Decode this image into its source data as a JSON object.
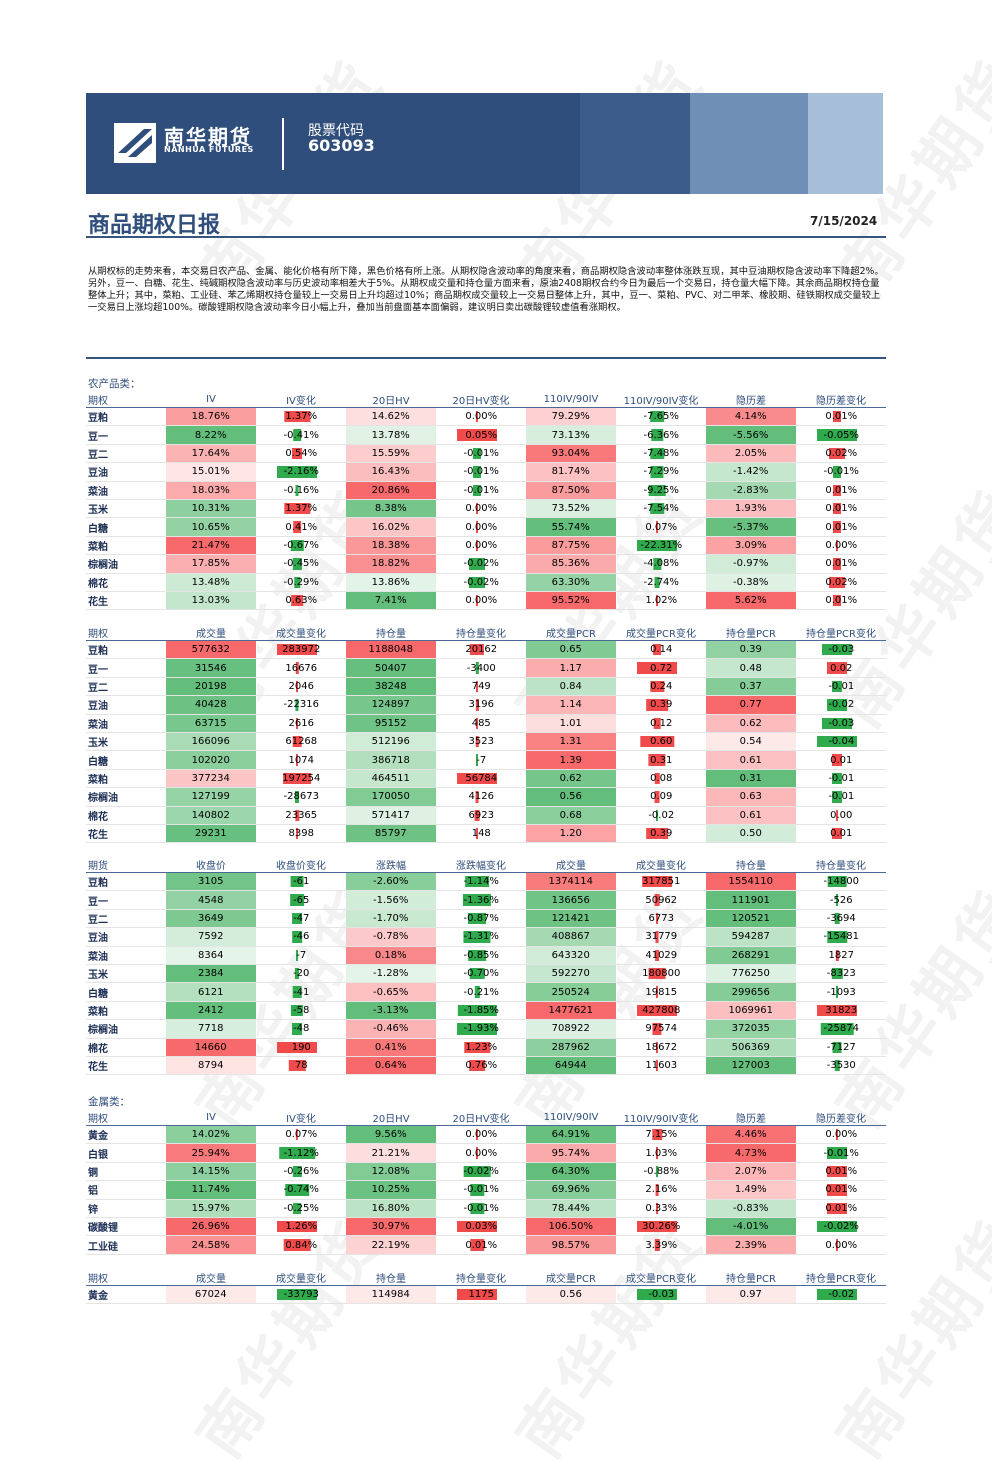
{
  "header": {
    "logo_cn": "南华期货",
    "logo_en": "NANHUA FUTURES",
    "stock_label": "股票代码",
    "stock_code": "603093",
    "title": "商品期权日报",
    "date": "7/15/2024",
    "watermark": "南华期货"
  },
  "summary": "从期权标的走势来看，本交易日农产品、金属、能化价格有所下降，黑色价格有所上涨。从期权隐含波动率的角度来看，商品期权隐含波动率整体涨跌互现，其中豆油期权隐含波动率下降超2%。另外，豆一、白糖、花生、纯碱期权隐含波动率与历史波动率相差大于5%。从期权成交量和持仓量方面来看，原油2408期权合约今日为最后一个交易日，持仓量大幅下降。其余商品期权持仓量整体上升；其中，菜粕、工业硅、苯乙烯期权持仓量较上一交易日上升均超过10%；商品期权成交量较上一交易日整体上升，其中，豆一、菜粕、PVC、对二甲苯、橡胶期、硅铁期权成交量较上一交易日上涨均超100%。碳酸锂期权隐含波动率今日小幅上升，叠加当前盘面基本面偏弱，建议明日卖出碳酸锂较虚值看涨期权。",
  "sections": [
    {
      "id": "agri-vol",
      "label": "农产品类：",
      "headers": [
        "期权",
        "IV",
        "IV变化",
        "20日HV",
        "20日HV变化",
        "110IV/90IV",
        "110IV/90IV变化",
        "隐历差",
        "隐历差变化"
      ],
      "rows": [
        [
          "豆粕",
          "18.76%",
          "1.37%",
          "14.62%",
          "0.00%",
          "79.29%",
          "-7.65%",
          "4.14%",
          "0.01%"
        ],
        [
          "豆一",
          "8.22%",
          "-0.41%",
          "13.78%",
          "0.05%",
          "73.13%",
          "-6.36%",
          "-5.56%",
          "-0.05%"
        ],
        [
          "豆二",
          "17.64%",
          "0.54%",
          "15.59%",
          "-0.01%",
          "93.04%",
          "-7.48%",
          "2.05%",
          "0.02%"
        ],
        [
          "豆油",
          "15.01%",
          "-2.16%",
          "16.43%",
          "-0.01%",
          "81.74%",
          "-7.29%",
          "-1.42%",
          "-0.01%"
        ],
        [
          "菜油",
          "18.03%",
          "-0.16%",
          "20.86%",
          "-0.01%",
          "87.50%",
          "-9.25%",
          "-2.83%",
          "0.01%"
        ],
        [
          "玉米",
          "10.31%",
          "1.37%",
          "8.38%",
          "0.00%",
          "73.52%",
          "-7.54%",
          "1.93%",
          "0.01%"
        ],
        [
          "白糖",
          "10.65%",
          "0.41%",
          "16.02%",
          "0.00%",
          "55.74%",
          "0.07%",
          "-5.37%",
          "0.01%"
        ],
        [
          "菜粕",
          "21.47%",
          "-0.67%",
          "18.38%",
          "0.00%",
          "87.75%",
          "-22.31%",
          "3.09%",
          "0.00%"
        ],
        [
          "棕榈油",
          "17.85%",
          "-0.45%",
          "18.82%",
          "-0.02%",
          "85.36%",
          "-4.08%",
          "-0.97%",
          "0.01%"
        ],
        [
          "棉花",
          "13.48%",
          "-0.29%",
          "13.86%",
          "-0.02%",
          "63.30%",
          "-2.74%",
          "-0.38%",
          "0.02%"
        ],
        [
          "花生",
          "13.03%",
          "0.63%",
          "7.41%",
          "0.00%",
          "95.52%",
          "1.02%",
          "5.62%",
          "0.01%"
        ]
      ]
    },
    {
      "id": "agri-volume",
      "label": "",
      "headers": [
        "期权",
        "成交量",
        "成交量变化",
        "持仓量",
        "持仓量变化",
        "成交量PCR",
        "成交量PCR变化",
        "持仓量PCR",
        "持仓量PCR变化"
      ],
      "rows": [
        [
          "豆粕",
          "577632",
          "283972",
          "1188048",
          "20162",
          "0.65",
          "0.14",
          "0.39",
          "-0.03"
        ],
        [
          "豆一",
          "31546",
          "16676",
          "50407",
          "-3400",
          "1.17",
          "0.72",
          "0.48",
          "0.02"
        ],
        [
          "豆二",
          "20198",
          "2046",
          "38248",
          "749",
          "0.84",
          "0.24",
          "0.37",
          "-0.01"
        ],
        [
          "豆油",
          "40428",
          "-22316",
          "124897",
          "3196",
          "1.14",
          "0.39",
          "0.77",
          "-0.02"
        ],
        [
          "菜油",
          "63715",
          "2616",
          "95152",
          "485",
          "1.01",
          "0.12",
          "0.62",
          "-0.03"
        ],
        [
          "玉米",
          "166096",
          "61268",
          "512196",
          "3523",
          "1.31",
          "0.60",
          "0.54",
          "-0.04"
        ],
        [
          "白糖",
          "102020",
          "1074",
          "386718",
          "-7",
          "1.39",
          "0.31",
          "0.61",
          "0.01"
        ],
        [
          "菜粕",
          "377234",
          "197254",
          "464511",
          "56784",
          "0.62",
          "0.08",
          "0.31",
          "-0.01"
        ],
        [
          "棕榈油",
          "127199",
          "-28673",
          "170050",
          "4126",
          "0.56",
          "0.09",
          "0.63",
          "-0.01"
        ],
        [
          "棉花",
          "140802",
          "23365",
          "571417",
          "6923",
          "0.68",
          "-0.02",
          "0.61",
          "0.00"
        ],
        [
          "花生",
          "29231",
          "8398",
          "85797",
          "148",
          "1.20",
          "0.39",
          "0.50",
          "0.01"
        ]
      ]
    },
    {
      "id": "agri-futures",
      "label": "",
      "headers": [
        "期货",
        "收盘价",
        "收盘价变化",
        "涨跌幅",
        "涨跌幅变化",
        "成交量",
        "成交量变化",
        "持仓量",
        "持仓量变化"
      ],
      "rows": [
        [
          "豆粕",
          "3105",
          "-61",
          "-2.60%",
          "-1.14%",
          "1374114",
          "317851",
          "1554110",
          "-14800"
        ],
        [
          "豆一",
          "4548",
          "-65",
          "-1.56%",
          "-1.36%",
          "136656",
          "50962",
          "111901",
          "-526"
        ],
        [
          "豆二",
          "3649",
          "-47",
          "-1.70%",
          "-0.87%",
          "121421",
          "6773",
          "120521",
          "-3694"
        ],
        [
          "豆油",
          "7592",
          "-46",
          "-0.78%",
          "-1.31%",
          "408867",
          "31779",
          "594287",
          "-15481"
        ],
        [
          "菜油",
          "8364",
          "-7",
          "0.18%",
          "-0.85%",
          "643320",
          "41029",
          "268291",
          "1827"
        ],
        [
          "玉米",
          "2384",
          "-20",
          "-1.28%",
          "-0.70%",
          "592270",
          "180800",
          "776250",
          "-8323"
        ],
        [
          "白糖",
          "6121",
          "-41",
          "-0.65%",
          "-0.21%",
          "250524",
          "19815",
          "299656",
          "-1093"
        ],
        [
          "菜粕",
          "2412",
          "-58",
          "-3.13%",
          "-1.85%",
          "1477621",
          "427808",
          "1069961",
          "31823"
        ],
        [
          "棕榈油",
          "7718",
          "-48",
          "-0.46%",
          "-1.93%",
          "708922",
          "97574",
          "372035",
          "-25874"
        ],
        [
          "棉花",
          "14660",
          "190",
          "0.41%",
          "1.23%",
          "287962",
          "18672",
          "506369",
          "-7127"
        ],
        [
          "花生",
          "8794",
          "78",
          "0.64%",
          "0.76%",
          "64944",
          "11603",
          "127003",
          "-3530"
        ]
      ]
    },
    {
      "id": "metal-vol",
      "label": "金属类：",
      "headers": [
        "期权",
        "IV",
        "IV变化",
        "20日HV",
        "20日HV变化",
        "110IV/90IV",
        "110IV/90IV变化",
        "隐历差",
        "隐历差变化"
      ],
      "rows": [
        [
          "黄金",
          "14.02%",
          "0.07%",
          "9.56%",
          "0.00%",
          "64.91%",
          "7.15%",
          "4.46%",
          "0.00%"
        ],
        [
          "白银",
          "25.94%",
          "-1.12%",
          "21.21%",
          "0.00%",
          "95.74%",
          "1.03%",
          "4.73%",
          "-0.01%"
        ],
        [
          "铜",
          "14.15%",
          "-0.26%",
          "12.08%",
          "-0.02%",
          "64.30%",
          "-0.88%",
          "2.07%",
          "0.01%"
        ],
        [
          "铝",
          "11.74%",
          "-0.74%",
          "10.25%",
          "-0.01%",
          "69.96%",
          "2.16%",
          "1.49%",
          "0.01%"
        ],
        [
          "锌",
          "15.97%",
          "-0.25%",
          "16.80%",
          "-0.01%",
          "78.44%",
          "0.33%",
          "-0.83%",
          "0.01%"
        ],
        [
          "碳酸锂",
          "26.96%",
          "1.26%",
          "30.97%",
          "0.03%",
          "106.50%",
          "30.26%",
          "-4.01%",
          "-0.02%"
        ],
        [
          "工业硅",
          "24.58%",
          "0.84%",
          "22.19%",
          "0.01%",
          "98.57%",
          "3.39%",
          "2.39%",
          "0.00%"
        ]
      ]
    },
    {
      "id": "metal-volume",
      "label": "",
      "headers": [
        "期权",
        "成交量",
        "成交量变化",
        "持仓量",
        "持仓量变化",
        "成交量PCR",
        "成交量PCR变化",
        "持仓量PCR",
        "持仓量PCR变化"
      ],
      "rows": [
        [
          "黄金",
          "67024",
          "-33793",
          "114984",
          "1175",
          "0.56",
          "-0.03",
          "0.97",
          "-0.02"
        ]
      ]
    }
  ],
  "colors": {
    "banner": "#2f4e7c",
    "title": "#2f4e7c",
    "heat_red": "#f8696b",
    "heat_green": "#63be7b",
    "bar_red": "#f04a4a",
    "bar_green": "#2faa4d"
  }
}
